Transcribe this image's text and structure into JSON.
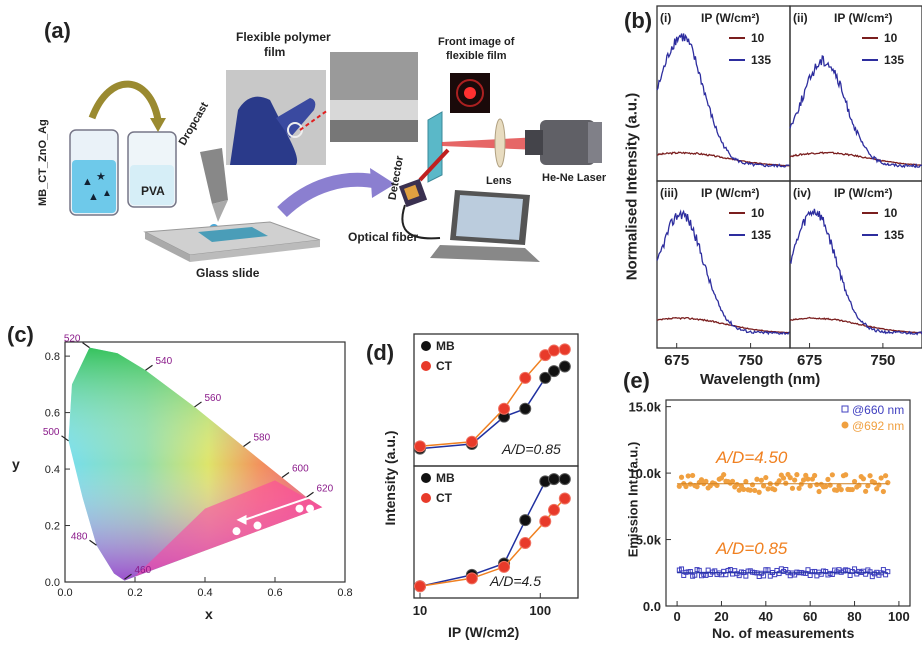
{
  "panel_labels": {
    "a": "(a)",
    "b": "(b)",
    "c": "(c)",
    "d": "(d)",
    "e": "(e)"
  },
  "panel_a": {
    "sample_label": "MB_CT_ZnO_Ag",
    "pva": "PVA",
    "dropcast": "Dropcast",
    "glass_slide": "Glass slide",
    "film_title_line1": "Flexible polymer",
    "film_title_line2": "film",
    "front_image_line1": "Front image of",
    "front_image_line2": "flexible film",
    "lens": "Lens",
    "laser": "He-Ne Laser",
    "detector": "Detector",
    "optical_fiber": "Optical fiber"
  },
  "chart_data": [
    {
      "panel": "b",
      "type": "line",
      "ylabel": "Normalised Intensity (a.u.)",
      "xlabel": "Wavelength (nm)",
      "x_ticks": [
        675,
        750
      ],
      "xlim": [
        655,
        790
      ],
      "legend_title": "IP (W/cm²)",
      "colors": {
        "10": "#7a1e1e",
        "135": "#2d2d9e"
      },
      "subplots": [
        {
          "label": "(i)",
          "series": [
            {
              "name": "10",
              "peak": 680,
              "height": 0.1
            },
            {
              "name": "135",
              "peak": 680,
              "height": 0.92
            }
          ]
        },
        {
          "label": "(ii)",
          "series": [
            {
              "name": "10",
              "peak": 690,
              "height": 0.1
            },
            {
              "name": "135",
              "peak": 690,
              "height": 0.75
            }
          ]
        },
        {
          "label": "(iii)",
          "series": [
            {
              "name": "10",
              "peak": 680,
              "height": 0.12
            },
            {
              "name": "135",
              "peak": 680,
              "height": 0.9
            }
          ]
        },
        {
          "label": "(iv)",
          "series": [
            {
              "name": "10",
              "peak": 680,
              "height": 0.12
            },
            {
              "name": "135",
              "peak": 680,
              "height": 0.92
            }
          ]
        }
      ]
    },
    {
      "panel": "c",
      "type": "scatter",
      "xlabel": "x",
      "ylabel": "y",
      "x_ticks": [
        "0.0",
        "0.2",
        "0.4",
        "0.6",
        "0.8"
      ],
      "y_ticks": [
        "0.0",
        "0.2",
        "0.4",
        "0.6",
        "0.8"
      ],
      "xlim": [
        0,
        0.8
      ],
      "ylim": [
        0,
        0.85
      ],
      "wavelength_labels": [
        {
          "text": "460",
          "x": 0.17,
          "y": 0.01
        },
        {
          "text": "480",
          "x": 0.09,
          "y": 0.13
        },
        {
          "text": "500",
          "x": 0.01,
          "y": 0.5
        },
        {
          "text": "520",
          "x": 0.07,
          "y": 0.83
        },
        {
          "text": "540",
          "x": 0.23,
          "y": 0.75
        },
        {
          "text": "560",
          "x": 0.37,
          "y": 0.62
        },
        {
          "text": "580",
          "x": 0.51,
          "y": 0.48
        },
        {
          "text": "600",
          "x": 0.62,
          "y": 0.37
        },
        {
          "text": "620",
          "x": 0.69,
          "y": 0.3
        }
      ],
      "points": [
        [
          0.49,
          0.18
        ],
        [
          0.55,
          0.2
        ],
        [
          0.67,
          0.26
        ],
        [
          0.7,
          0.26
        ]
      ]
    },
    {
      "panel": "d",
      "type": "line",
      "ylabel": "Intensity (a.u.)",
      "xlabel": "IP (W/cm2)",
      "x_ticks": [
        "10",
        "100"
      ],
      "log_x": true,
      "colors": {
        "MB": "#2030a0",
        "CT": "#f08020"
      },
      "subplots": [
        {
          "annotation": "A/D=0.85",
          "series": [
            {
              "name": "MB",
              "x": [
                10,
                27,
                50,
                75,
                110,
                130,
                160
              ],
              "y": [
                0.1,
                0.14,
                0.38,
                0.45,
                0.72,
                0.78,
                0.82
              ]
            },
            {
              "name": "CT",
              "x": [
                10,
                27,
                50,
                75,
                110,
                130,
                160
              ],
              "y": [
                0.12,
                0.16,
                0.45,
                0.72,
                0.92,
                0.96,
                0.97
              ]
            }
          ]
        },
        {
          "annotation": "A/D=4.5",
          "series": [
            {
              "name": "MB",
              "x": [
                10,
                27,
                50,
                75,
                110,
                130,
                160
              ],
              "y": [
                0.05,
                0.15,
                0.25,
                0.63,
                0.97,
                0.99,
                0.99
              ]
            },
            {
              "name": "CT",
              "x": [
                10,
                27,
                50,
                75,
                110,
                130,
                160
              ],
              "y": [
                0.05,
                0.12,
                0.22,
                0.43,
                0.62,
                0.72,
                0.82
              ]
            }
          ]
        }
      ]
    },
    {
      "panel": "e",
      "type": "scatter",
      "ylabel": "Emission Int. (a.u.)",
      "xlabel": "No. of measurements",
      "x_ticks": [
        "0",
        "20",
        "40",
        "60",
        "80",
        "100"
      ],
      "y_ticks": [
        "0.0",
        "5.0k",
        "10.0k",
        "15.0k"
      ],
      "xlim": [
        -5,
        105
      ],
      "ylim": [
        0,
        15500
      ],
      "annotations": {
        "top": "A/D=4.50",
        "bottom": "A/D=0.85"
      },
      "series": [
        {
          "name": "@660 nm",
          "color": "#4040c0",
          "mean": 2500,
          "spread": 500,
          "count": 95
        },
        {
          "name": "@692 nm",
          "color": "#f0a040",
          "mean": 9200,
          "spread": 700,
          "count": 95
        }
      ]
    }
  ]
}
